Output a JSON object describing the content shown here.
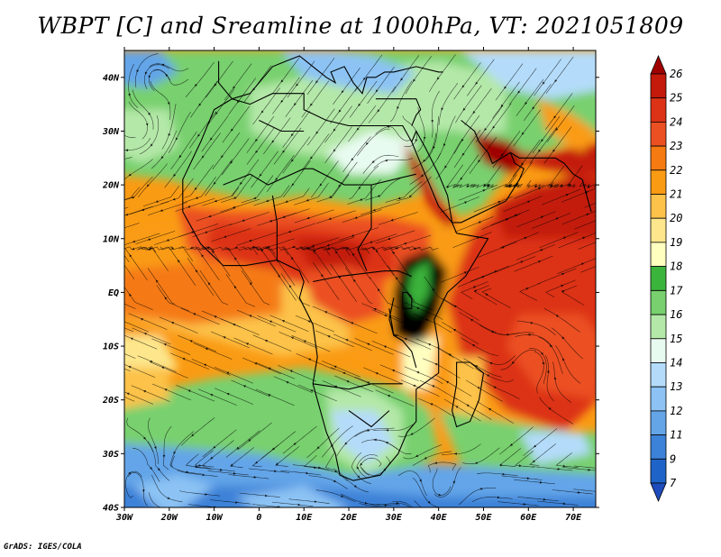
{
  "title": "WBPT [C] and Sreamline at 1000hPa, VT: 2021051809",
  "credit": "GrADS: IGES/COLA",
  "map": {
    "lon_range": [
      -30,
      75
    ],
    "lat_range": [
      -40,
      45
    ],
    "lat_ticks": [
      {
        "value": 40,
        "label": "40N"
      },
      {
        "value": 30,
        "label": "30N"
      },
      {
        "value": 20,
        "label": "20N"
      },
      {
        "value": 10,
        "label": "10N"
      },
      {
        "value": 0,
        "label": "EQ"
      },
      {
        "value": -10,
        "label": "10S"
      },
      {
        "value": -20,
        "label": "20S"
      },
      {
        "value": -30,
        "label": "30S"
      },
      {
        "value": -40,
        "label": "40S"
      }
    ],
    "lon_ticks": [
      {
        "value": -30,
        "label": "30W"
      },
      {
        "value": -20,
        "label": "20W"
      },
      {
        "value": -10,
        "label": "10W"
      },
      {
        "value": 0,
        "label": "0"
      },
      {
        "value": 10,
        "label": "10E"
      },
      {
        "value": 20,
        "label": "20E"
      },
      {
        "value": 30,
        "label": "30E"
      },
      {
        "value": 40,
        "label": "40E"
      },
      {
        "value": 50,
        "label": "50E"
      },
      {
        "value": 60,
        "label": "60E"
      },
      {
        "value": 70,
        "label": "70E"
      }
    ]
  },
  "colorbar": {
    "levels": [
      "26",
      "25",
      "24",
      "23",
      "22",
      "21",
      "20",
      "19",
      "18",
      "17",
      "16",
      "15",
      "14",
      "13",
      "12",
      "11",
      "9",
      "7"
    ],
    "colors": [
      "#a00000",
      "#c31a0b",
      "#dc3216",
      "#eb5022",
      "#f57a12",
      "#fa9b14",
      "#fcc24a",
      "#fde68c",
      "#ffffc0",
      "#3bb43b",
      "#78d06e",
      "#b4e8a8",
      "#e8fbf0",
      "#b4dcfa",
      "#8cc3f4",
      "#64a5e8",
      "#3c82d8",
      "#1e64c8",
      "#1e4cbc"
    ]
  }
}
